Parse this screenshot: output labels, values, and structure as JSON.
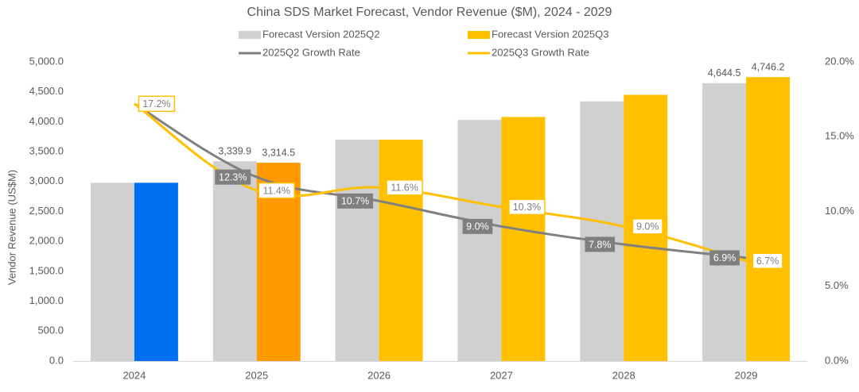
{
  "chart_data": {
    "type": "bar",
    "title": "China SDS Market Forecast, Vendor Revenue ($M), 2024 - 2029",
    "categories": [
      "2024",
      "2025",
      "2026",
      "2027",
      "2028",
      "2029"
    ],
    "ylabel": "Vendor Revenue (US$M)",
    "ylim": [
      0,
      5000
    ],
    "y_ticks": [
      "0.0",
      "500.0",
      "1,000.0",
      "1,500.0",
      "2,000.0",
      "2,500.0",
      "3,000.0",
      "3,500.0",
      "4,000.0",
      "4,500.0",
      "5,000.0"
    ],
    "y2lim": [
      0,
      20
    ],
    "y2_ticks": [
      "0.0%",
      "5.0%",
      "10.0%",
      "15.0%",
      "20.0%"
    ],
    "grid": false,
    "legend_position": "top",
    "series": [
      {
        "name": "Forecast Version 2025Q2",
        "kind": "bar",
        "values": [
          2980,
          3339.9,
          3700,
          4030,
          4340,
          4644.5
        ],
        "data_labels": [
          "",
          "3,339.9",
          "",
          "",
          "",
          "4,644.5"
        ],
        "color": "#d0d0d0"
      },
      {
        "name": "Forecast Version 2025Q3",
        "kind": "bar",
        "values": [
          2980,
          3314.5,
          3700,
          4080,
          4450,
          4746.2
        ],
        "data_labels": [
          "",
          "3,314.5",
          "",
          "",
          "",
          "4,746.2"
        ],
        "color": "#ffc000",
        "point_colors": [
          "#0070f0",
          "#ff9900",
          "#ffc000",
          "#ffc000",
          "#ffc000",
          "#ffc000"
        ]
      },
      {
        "name": "2025Q2 Growth Rate",
        "kind": "line",
        "axis": "right",
        "values": [
          17.2,
          12.3,
          10.7,
          9.0,
          7.8,
          6.9
        ],
        "data_labels": [
          "",
          "12.3%",
          "10.7%",
          "9.0%",
          "7.8%",
          "6.9%"
        ],
        "color": "#808080"
      },
      {
        "name": "2025Q3 Growth Rate",
        "kind": "line",
        "axis": "right",
        "values": [
          17.2,
          11.4,
          11.6,
          10.3,
          9.0,
          6.7
        ],
        "data_labels": [
          "17.2%",
          "11.4%",
          "11.6%",
          "10.3%",
          "9.0%",
          "6.7%"
        ],
        "color": "#ffc000"
      }
    ]
  }
}
